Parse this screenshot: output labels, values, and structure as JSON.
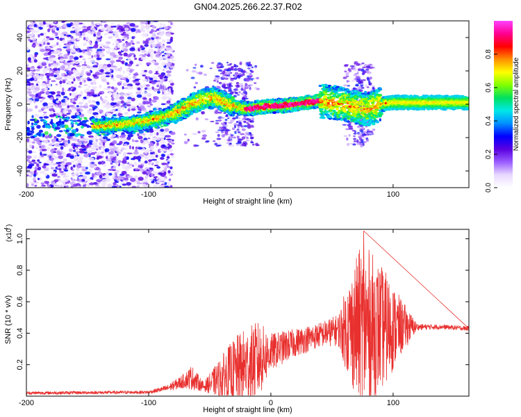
{
  "title": "GN04.2025.266.22.37.R02",
  "chart_data": [
    {
      "type": "heatmap",
      "name": "spectrogram",
      "xlabel": "Height of straight line (km)",
      "ylabel": "Frequency (Hz)",
      "xlim": [
        -200,
        162
      ],
      "ylim": [
        -50,
        50
      ],
      "xticks": [
        -200,
        -100,
        0,
        100
      ],
      "yticks": [
        -40,
        -20,
        0,
        20,
        40
      ],
      "colorbar": {
        "label": "Normalized spectral amplitude",
        "range": [
          0,
          1
        ],
        "ticks": [
          0.0,
          0.2,
          0.4,
          0.6,
          0.8
        ],
        "tick_labels": [
          "0.0",
          "0.2",
          "0.4",
          "0.6",
          "0.8"
        ],
        "colormap": [
          "#ffffff",
          "#e8d8ff",
          "#9a5cff",
          "#5a00e0",
          "#0000ff",
          "#0090ff",
          "#00e8e8",
          "#00e060",
          "#80ff00",
          "#ffff00",
          "#ff9000",
          "#ff0000",
          "#ff0090",
          "#ff40ff"
        ]
      },
      "ridge": {
        "x": [
          -140,
          -120,
          -100,
          -80,
          -65,
          -55,
          -45,
          -35,
          -20,
          -10,
          0,
          10,
          20,
          30,
          40,
          50,
          60,
          70,
          80,
          90,
          100,
          120,
          140,
          160
        ],
        "freq": [
          -13,
          -12,
          -10,
          -6,
          0,
          3,
          4,
          0,
          -3,
          -2,
          -1,
          -1,
          0,
          1,
          2,
          1,
          0,
          -2,
          -3,
          0,
          1,
          1,
          1,
          1
        ]
      }
    },
    {
      "type": "line",
      "name": "snr",
      "xlabel": "Height of straight line (km)",
      "ylabel": "SNR (10 * v/v)",
      "yscale_label": "(x10",
      "yscale_exp": "4",
      "xlim": [
        -200,
        162
      ],
      "ylim": [
        0,
        1.06
      ],
      "xticks": [
        -200,
        -100,
        0,
        100
      ],
      "yticks": [
        0.2,
        0.4,
        0.6,
        0.8,
        1.0
      ],
      "ytick_labels": [
        "0.2",
        "0.4",
        "0.6",
        "0.8",
        "1.0"
      ],
      "color": "#e8302e",
      "envelope": {
        "x": [
          -200,
          -100,
          -85,
          -70,
          -65,
          -55,
          -45,
          -35,
          -25,
          -10,
          0,
          20,
          40,
          55,
          65,
          75,
          85,
          95,
          105,
          120,
          140,
          162
        ],
        "baseline": [
          0.02,
          0.025,
          0.05,
          0.1,
          0.12,
          0.06,
          0.1,
          0.14,
          0.17,
          0.23,
          0.28,
          0.34,
          0.39,
          0.42,
          0.43,
          0.44,
          0.44,
          0.43,
          0.44,
          0.44,
          0.44,
          0.43
        ],
        "spread": [
          0.01,
          0.01,
          0.02,
          0.05,
          0.08,
          0.03,
          0.1,
          0.18,
          0.24,
          0.25,
          0.12,
          0.09,
          0.08,
          0.1,
          0.35,
          0.55,
          0.45,
          0.35,
          0.2,
          0.02,
          0.015,
          0.015
        ]
      },
      "peak": {
        "x": 76,
        "y": 1.05
      }
    }
  ]
}
